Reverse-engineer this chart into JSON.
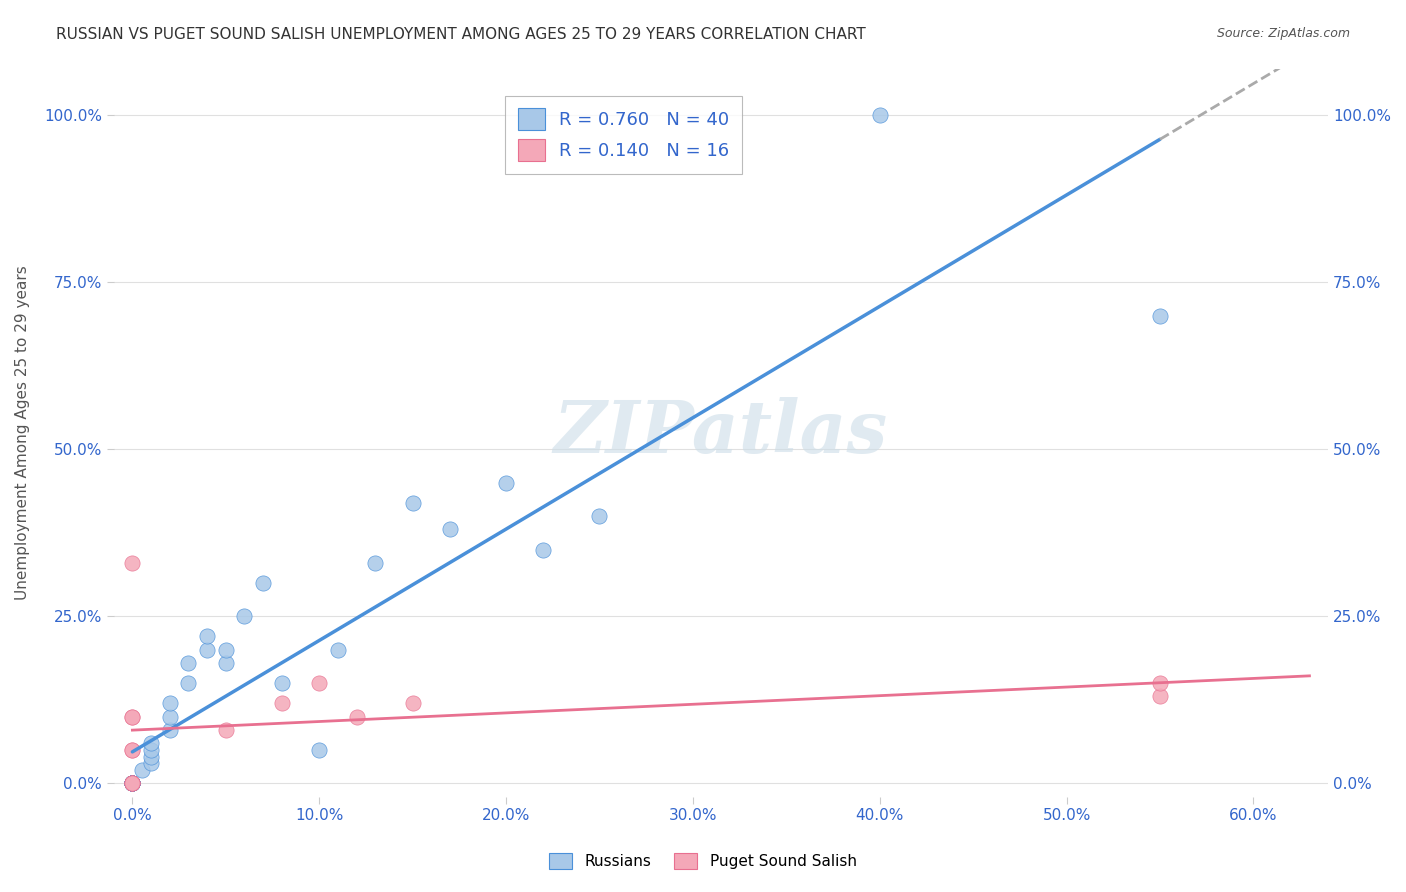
{
  "title": "RUSSIAN VS PUGET SOUND SALISH UNEMPLOYMENT AMONG AGES 25 TO 29 YEARS CORRELATION CHART",
  "source": "Source: ZipAtlas.com",
  "xlabel_vals": [
    0.0,
    10.0,
    20.0,
    30.0,
    40.0,
    50.0,
    60.0
  ],
  "ylabel_vals": [
    0.0,
    25.0,
    50.0,
    75.0,
    100.0
  ],
  "xlim": [
    -1,
    64
  ],
  "ylim": [
    -2,
    107
  ],
  "watermark": "ZIPatlas",
  "russians": {
    "R": 0.76,
    "N": 40,
    "line_color": "#4a90d9",
    "scatter_color": "#a8c8e8",
    "x": [
      0,
      0,
      0,
      0,
      0,
      0,
      0,
      0,
      0,
      0,
      0,
      0,
      0,
      0.5,
      1,
      1,
      1,
      1,
      2,
      2,
      2,
      3,
      3,
      4,
      4,
      5,
      5,
      6,
      7,
      8,
      10,
      11,
      13,
      15,
      17,
      20,
      22,
      25,
      40,
      55
    ],
    "y": [
      0,
      0,
      0,
      0,
      0,
      0,
      0,
      0,
      0,
      0,
      0,
      0,
      0,
      2,
      3,
      4,
      5,
      6,
      8,
      10,
      12,
      15,
      18,
      20,
      22,
      18,
      20,
      25,
      30,
      15,
      5,
      20,
      33,
      42,
      38,
      45,
      35,
      40,
      100,
      70
    ]
  },
  "salish": {
    "R": 0.14,
    "N": 16,
    "line_color": "#e87090",
    "scatter_color": "#f4a8b8",
    "x": [
      0,
      0,
      0,
      0,
      0,
      0,
      0,
      0,
      0,
      5,
      8,
      10,
      12,
      15,
      55,
      55
    ],
    "y": [
      0,
      0,
      0,
      0,
      5,
      5,
      10,
      10,
      33,
      8,
      12,
      15,
      10,
      12,
      13,
      15
    ]
  },
  "legend_label_russians": "Russians",
  "legend_label_salish": "Puget Sound Salish",
  "ylabel": "Unemployment Among Ages 25 to 29 years",
  "background_color": "#ffffff",
  "grid_color": "#e0e0e0",
  "tick_color": "#3366cc",
  "title_color": "#333333",
  "source_color": "#555555",
  "ylabel_color": "#555555",
  "watermark_color": "#ccdde8",
  "dash_color": "#aaaaaa"
}
